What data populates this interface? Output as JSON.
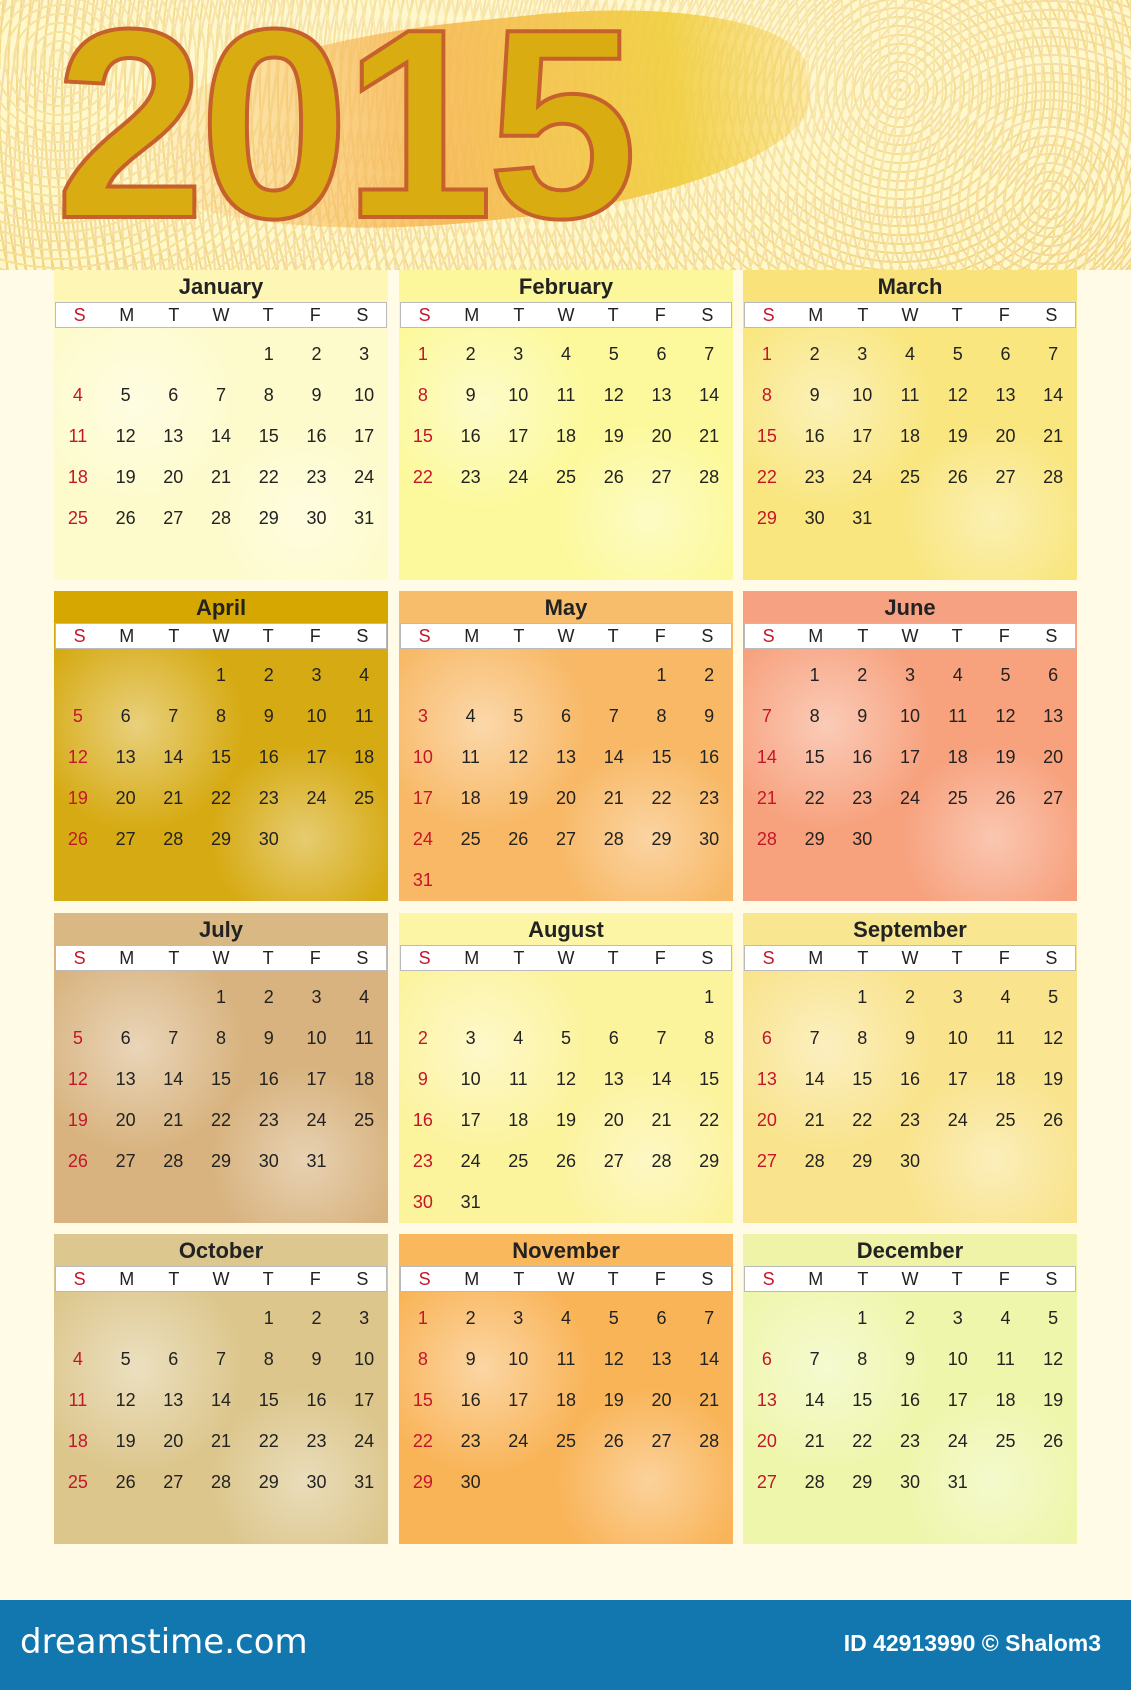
{
  "year": "2015",
  "weekdays": [
    "S",
    "M",
    "T",
    "W",
    "T",
    "F",
    "S"
  ],
  "months": [
    {
      "name": "January",
      "start_weekday": 4,
      "days": 31,
      "bg": "#fdfbcb",
      "head": "#fdf6b4"
    },
    {
      "name": "February",
      "start_weekday": 0,
      "days": 28,
      "bg": "#fcf99c",
      "head": "#fcf79a"
    },
    {
      "name": "March",
      "start_weekday": 0,
      "days": 31,
      "bg": "#f9e67f",
      "head": "#f9e27a"
    },
    {
      "name": "April",
      "start_weekday": 3,
      "days": 30,
      "bg": "#d6aa12",
      "head": "#d5a700"
    },
    {
      "name": "May",
      "start_weekday": 5,
      "days": 31,
      "bg": "#f8b865",
      "head": "#f8bd6a"
    },
    {
      "name": "June",
      "start_weekday": 1,
      "days": 30,
      "bg": "#f7a17d",
      "head": "#f6a282"
    },
    {
      "name": "July",
      "start_weekday": 3,
      "days": 31,
      "bg": "#d8b37f",
      "head": "#d9b884"
    },
    {
      "name": "August",
      "start_weekday": 6,
      "days": 31,
      "bg": "#fcf39d",
      "head": "#fcf5a6"
    },
    {
      "name": "September",
      "start_weekday": 2,
      "days": 30,
      "bg": "#f9e38c",
      "head": "#f8e690"
    },
    {
      "name": "October",
      "start_weekday": 4,
      "days": 31,
      "bg": "#dcc68c",
      "head": "#dcc88f"
    },
    {
      "name": "November",
      "start_weekday": 0,
      "days": 30,
      "bg": "#f9b458",
      "head": "#f9b85c"
    },
    {
      "name": "December",
      "start_weekday": 2,
      "days": 31,
      "bg": "#eef6ab",
      "head": "#eef3a7"
    }
  ],
  "colors": {
    "sunday": "#c4162a",
    "footer": "#1177ae"
  },
  "footer": {
    "logo": "dreamstime.com",
    "credit": "ID 42913990 © Shalom3"
  }
}
